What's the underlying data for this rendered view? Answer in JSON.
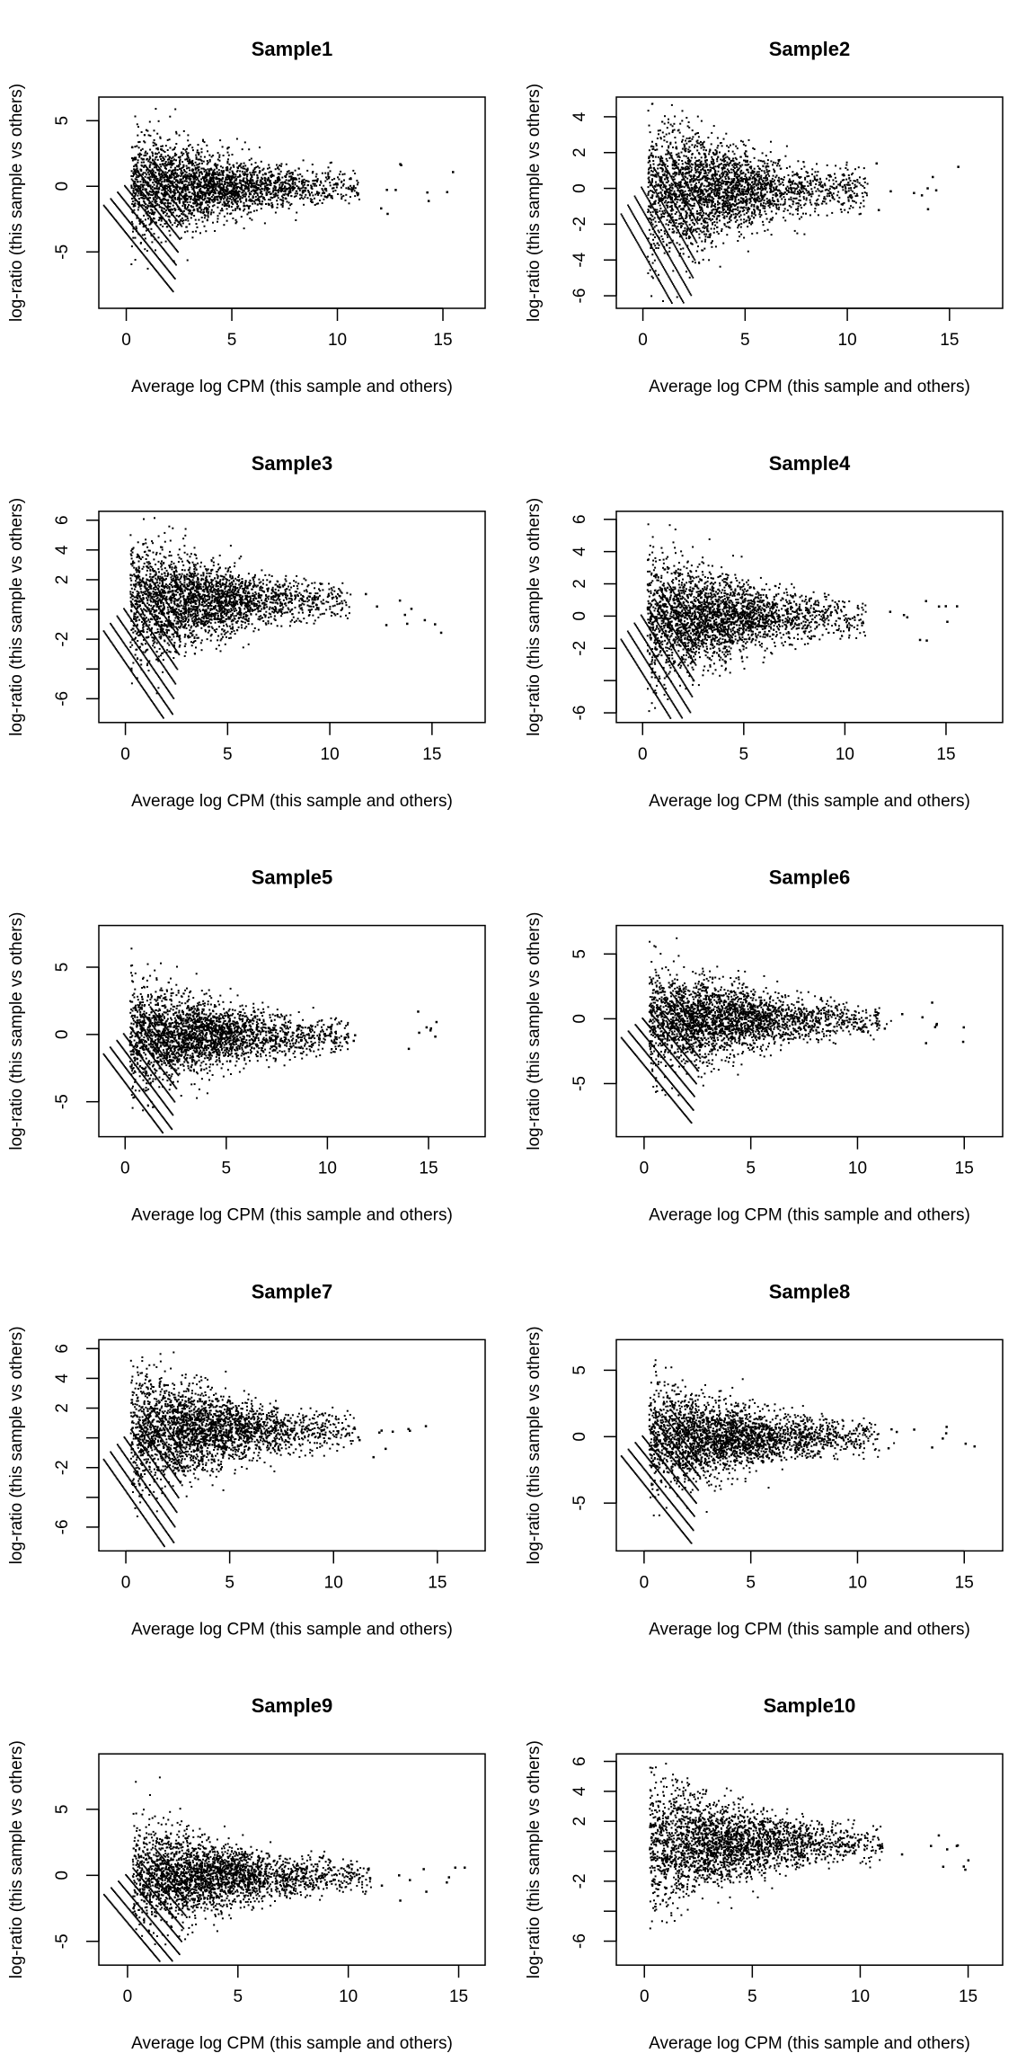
{
  "chart_data": [
    {
      "type": "scatter",
      "title": "Sample1",
      "xlabel": "Average log CPM (this sample and others)",
      "ylabel": "log-ratio (this sample vs others)",
      "xlim": [
        -1.3,
        17
      ],
      "ylim": [
        -9.3,
        6.8
      ],
      "xticks": [
        0,
        5,
        10,
        15
      ],
      "yticks": [
        -5,
        0,
        5
      ],
      "ytick_labels": [
        "-5",
        "0",
        "5"
      ],
      "grid": false
    },
    {
      "type": "scatter",
      "title": "Sample2",
      "xlabel": "Average log CPM (this sample and others)",
      "ylabel": "log-ratio (this sample vs others)",
      "xlim": [
        -1.3,
        17.6
      ],
      "ylim": [
        -6.7,
        5.1
      ],
      "xticks": [
        0,
        5,
        10,
        15
      ],
      "yticks": [
        -6,
        -4,
        -2,
        0,
        2,
        4
      ],
      "ytick_labels": [
        "-6",
        "-4",
        "-2",
        "0",
        "2",
        "4"
      ],
      "grid": false
    },
    {
      "type": "scatter",
      "title": "Sample3",
      "xlabel": "Average log CPM (this sample and others)",
      "ylabel": "log-ratio (this sample vs others)",
      "xlim": [
        -1.3,
        17.6
      ],
      "ylim": [
        -7.6,
        6.6
      ],
      "xticks": [
        0,
        5,
        10,
        15
      ],
      "yticks": [
        -6,
        -4,
        -2,
        0,
        2,
        4,
        6
      ],
      "ytick_labels": [
        "-6",
        "",
        "-2",
        "",
        "2",
        "4",
        "6"
      ],
      "grid": false
    },
    {
      "type": "scatter",
      "title": "Sample4",
      "xlabel": "Average log CPM (this sample and others)",
      "ylabel": "log-ratio (this sample vs others)",
      "xlim": [
        -1.3,
        17.8
      ],
      "ylim": [
        -6.6,
        6.5
      ],
      "xticks": [
        0,
        5,
        10,
        15
      ],
      "yticks": [
        -6,
        -4,
        -2,
        0,
        2,
        4,
        6
      ],
      "ytick_labels": [
        "-6",
        "",
        "-2",
        "0",
        "2",
        "4",
        "6"
      ],
      "grid": false
    },
    {
      "type": "scatter",
      "title": "Sample5",
      "xlabel": "Average log CPM (this sample and others)",
      "ylabel": "log-ratio (this sample vs others)",
      "xlim": [
        -1.3,
        17.8
      ],
      "ylim": [
        -7.6,
        8.1
      ],
      "xticks": [
        0,
        5,
        10,
        15
      ],
      "yticks": [
        -5,
        0,
        5
      ],
      "ytick_labels": [
        "-5",
        "0",
        "5"
      ],
      "grid": false
    },
    {
      "type": "scatter",
      "title": "Sample6",
      "xlabel": "Average log CPM (this sample and others)",
      "ylabel": "log-ratio (this sample vs others)",
      "xlim": [
        -1.3,
        16.8
      ],
      "ylim": [
        -9.1,
        7.2
      ],
      "xticks": [
        0,
        5,
        10,
        15
      ],
      "yticks": [
        -5,
        0,
        5
      ],
      "ytick_labels": [
        "-5",
        "0",
        "5"
      ],
      "grid": false
    },
    {
      "type": "scatter",
      "title": "Sample7",
      "xlabel": "Average log CPM (this sample and others)",
      "ylabel": "log-ratio (this sample vs others)",
      "xlim": [
        -1.3,
        17.3
      ],
      "ylim": [
        -7.6,
        6.6
      ],
      "xticks": [
        0,
        5,
        10,
        15
      ],
      "yticks": [
        -6,
        -4,
        -2,
        0,
        2,
        4,
        6
      ],
      "ytick_labels": [
        "-6",
        "",
        "-2",
        "",
        "2",
        "4",
        "6"
      ],
      "grid": false
    },
    {
      "type": "scatter",
      "title": "Sample8",
      "xlabel": "Average log CPM (this sample and others)",
      "ylabel": "log-ratio (this sample vs others)",
      "xlim": [
        -1.3,
        16.8
      ],
      "ylim": [
        -8.6,
        7.3
      ],
      "xticks": [
        0,
        5,
        10,
        15
      ],
      "yticks": [
        -5,
        0,
        5
      ],
      "ytick_labels": [
        "-5",
        "0",
        "5"
      ],
      "grid": false
    },
    {
      "type": "scatter",
      "title": "Sample9",
      "xlabel": "Average log CPM (this sample and others)",
      "ylabel": "log-ratio (this sample vs others)",
      "xlim": [
        -1.3,
        16.2
      ],
      "ylim": [
        -6.8,
        9.2
      ],
      "xticks": [
        0,
        5,
        10,
        15
      ],
      "yticks": [
        -5,
        0,
        5
      ],
      "ytick_labels": [
        "-5",
        "0",
        "5"
      ],
      "grid": false
    },
    {
      "type": "scatter",
      "title": "Sample10",
      "xlabel": "Average log CPM (this sample and others)",
      "ylabel": "log-ratio (this sample vs others)",
      "xlim": [
        -1.3,
        16.6
      ],
      "ylim": [
        -7.6,
        6.5
      ],
      "xticks": [
        0,
        5,
        10,
        15
      ],
      "yticks": [
        -6,
        -4,
        -2,
        0,
        2,
        4,
        6
      ],
      "ytick_labels": [
        "-6",
        "",
        "-2",
        "",
        "2",
        "4",
        "6"
      ],
      "grid": false
    }
  ],
  "colors": {
    "points": "#000000",
    "background": "#ffffff"
  }
}
